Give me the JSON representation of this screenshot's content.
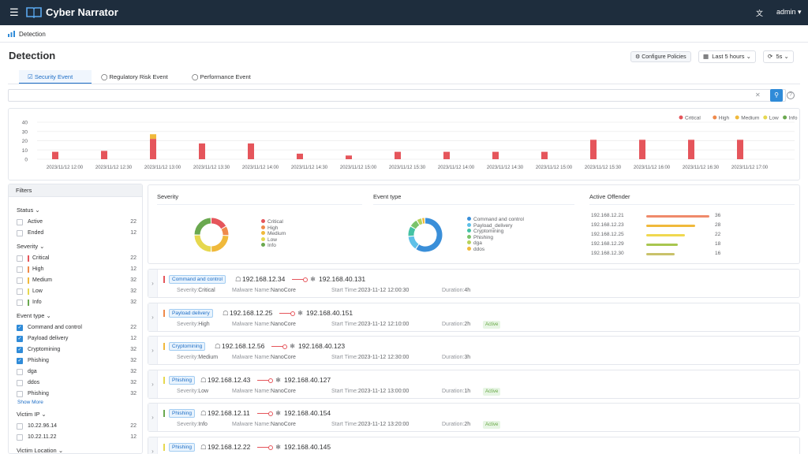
{
  "topbar": {
    "menu_icon": "hamburger-icon",
    "brand": "Cyber Narrator",
    "lang_icon": "translate-icon",
    "user": "admin"
  },
  "breadcrumb": {
    "icon": "bar-chart-icon",
    "label": "Detection"
  },
  "page": {
    "title": "Detection"
  },
  "toolbar": {
    "configure_label": "Configure Policies",
    "time_range": "Last 5 hours",
    "refresh_interval": "5s"
  },
  "tabs": [
    {
      "label": "Security Event",
      "active": true
    },
    {
      "label": "Regulatory Risk Event",
      "active": false
    },
    {
      "label": "Performance Event",
      "active": false
    }
  ],
  "search": {
    "placeholder": ""
  },
  "timeline": {
    "legend": [
      {
        "name": "Critical",
        "color": "#e5555b"
      },
      {
        "name": "High",
        "color": "#ef8a4b"
      },
      {
        "name": "Medium",
        "color": "#f0b93b"
      },
      {
        "name": "Low",
        "color": "#e6d84f"
      },
      {
        "name": "Info",
        "color": "#6aa84f"
      }
    ]
  },
  "chart_data": {
    "type": "bar",
    "yticks": [
      "40",
      "30",
      "20",
      "10",
      "0"
    ],
    "ylim": [
      0,
      40
    ],
    "xticks": [
      "2023/11/12 12:00",
      "2023/11/12 12:30",
      "2023/11/12 13:00",
      "2023/11/12 13:30",
      "2023/11/12 14:00",
      "2023/11/12 14:30",
      "2023/11/12 15:00",
      "2023/11/12 15:30",
      "2023/11/12 14:00",
      "2023/11/12 14:30",
      "2023/11/12 15:00",
      "2023/11/12 15:30",
      "2023/11/12 16:00",
      "2023/11/12 16:30",
      "2023/11/12 17:00"
    ],
    "series": [
      {
        "name": "Critical",
        "values": [
          8,
          9,
          22,
          17,
          17,
          6,
          4,
          8,
          8,
          8,
          8,
          21,
          21,
          21,
          21
        ]
      },
      {
        "name": "Medium",
        "values": [
          0,
          0,
          5,
          0,
          0,
          0,
          0,
          0,
          0,
          0,
          0,
          0,
          0,
          0,
          0
        ]
      }
    ]
  },
  "filters": {
    "title": "Filters",
    "status": {
      "label": "Status",
      "items": [
        {
          "label": "Active",
          "count": "22"
        },
        {
          "label": "Ended",
          "count": "12"
        }
      ]
    },
    "severity": {
      "label": "Severity",
      "items": [
        {
          "label": "Critical",
          "count": "22",
          "color": "#e5555b"
        },
        {
          "label": "High",
          "count": "12",
          "color": "#ef8a4b"
        },
        {
          "label": "Medium",
          "count": "32",
          "color": "#f0b93b"
        },
        {
          "label": "Low",
          "count": "32",
          "color": "#e6d84f"
        },
        {
          "label": "Info",
          "count": "32",
          "color": "#6aa84f"
        }
      ]
    },
    "event_type": {
      "label": "Event type",
      "items": [
        {
          "label": "Command and control",
          "count": "22",
          "checked": true
        },
        {
          "label": "Payload delivery",
          "count": "12",
          "checked": true
        },
        {
          "label": "Cryptomining",
          "count": "32",
          "checked": true
        },
        {
          "label": "Phishing",
          "count": "32",
          "checked": true
        },
        {
          "label": "dga",
          "count": "32",
          "checked": false
        },
        {
          "label": "ddos",
          "count": "32",
          "checked": false
        },
        {
          "label": "Phishing",
          "count": "32",
          "checked": false
        }
      ],
      "show_more": "Show More"
    },
    "victim_ip": {
      "label": "Victim IP",
      "items": [
        {
          "label": "10.22.96.14",
          "count": "22"
        },
        {
          "label": "10.22.11.22",
          "count": "12"
        }
      ]
    },
    "victim_location": {
      "label": "Victim Location"
    }
  },
  "summary": {
    "severity": {
      "title": "Severity",
      "legend": [
        "Critical",
        "High",
        "Medium",
        "Low",
        "Info"
      ]
    },
    "event_type": {
      "title": "Event type",
      "legend": [
        "Command and control",
        "Payload_delivery",
        "Cryptomining",
        "Phishing",
        "dga",
        "ddos"
      ]
    },
    "active_offender": {
      "title": "Active Offender",
      "rows": [
        {
          "ip": "192.168.12.21",
          "value": 36
        },
        {
          "ip": "192.168.12.23",
          "value": 28
        },
        {
          "ip": "192.168.12.25",
          "value": 22
        },
        {
          "ip": "192.168.12.29",
          "value": 18
        },
        {
          "ip": "192.168.12.30",
          "value": 16
        }
      ]
    }
  },
  "events": [
    {
      "tag": "Command and control",
      "src": "192.168.12.34",
      "dst": "192.168.40.131",
      "sev_label": "Severity:",
      "severity": "Critical",
      "mal_label": "Malware Name:",
      "malware": "NanoCore",
      "start_label": "Start Time:",
      "start": "2023-11-12 12:00:30",
      "dur_label": "Duration:",
      "duration": "4h",
      "active": "",
      "color": "#e5555b"
    },
    {
      "tag": "Payload delivery",
      "src": "192.168.12.25",
      "dst": "192.168.40.151",
      "sev_label": "Severity:",
      "severity": "High",
      "mal_label": "Malware Name:",
      "malware": "NanoCore",
      "start_label": "Start Time:",
      "start": "2023-11-12 12:10:00",
      "dur_label": "Duration:",
      "duration": "2h",
      "active": "Active",
      "color": "#ef8a4b"
    },
    {
      "tag": "Cryptomining",
      "src": "192.168.12.56",
      "dst": "192.168.40.123",
      "sev_label": "Severity:",
      "severity": "Medium",
      "mal_label": "Malware Name:",
      "malware": "NanoCore",
      "start_label": "Start Time:",
      "start": "2023-11-12 12:30:00",
      "dur_label": "Duration:",
      "duration": "3h",
      "active": "",
      "color": "#f0b93b"
    },
    {
      "tag": "Phishing",
      "src": "192.168.12.43",
      "dst": "192.168.40.127",
      "sev_label": "Severity:",
      "severity": "Low",
      "mal_label": "Malware Name:",
      "malware": "NanoCore",
      "start_label": "Start Time:",
      "start": "2023-11-12 13:00:00",
      "dur_label": "Duration:",
      "duration": "1h",
      "active": "Active",
      "color": "#e6d84f"
    },
    {
      "tag": "Phishing",
      "src": "192.168.12.11",
      "dst": "192.168.40.154",
      "sev_label": "Severity:",
      "severity": "Info",
      "mal_label": "Malware Name:",
      "malware": "NanoCore",
      "start_label": "Start Time:",
      "start": "2023-11-12 13:20:00",
      "dur_label": "Duration:",
      "duration": "2h",
      "active": "Active",
      "color": "#6aa84f"
    },
    {
      "tag": "Phishing",
      "src": "192.168.12.22",
      "dst": "192.168.40.145",
      "sev_label": "",
      "severity": "",
      "mal_label": "",
      "malware": "",
      "start_label": "",
      "start": "",
      "dur_label": "",
      "duration": "",
      "active": "",
      "color": "#e6d84f"
    }
  ]
}
